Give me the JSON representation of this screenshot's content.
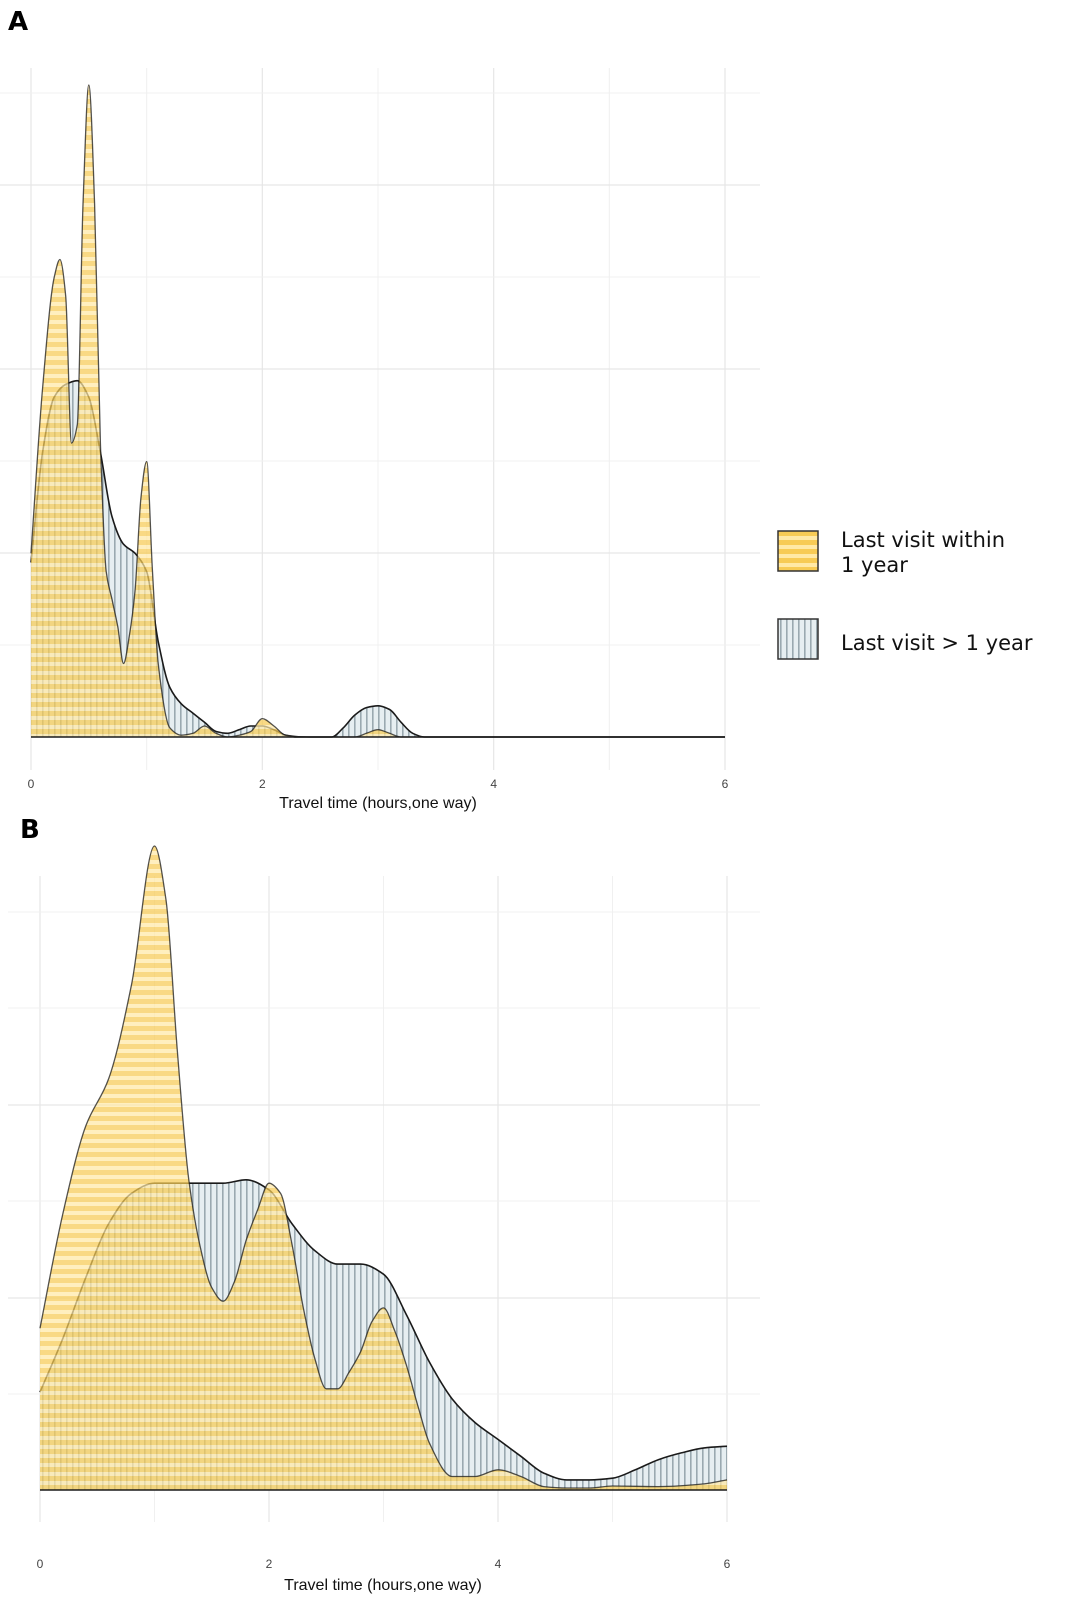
{
  "chart_data": [
    {
      "type": "area",
      "panel_label": "A",
      "xlabel": "Travel time (hours,one way)",
      "ylabel": "",
      "xlim": [
        0,
        6
      ],
      "x_ticks": [
        "0",
        "2",
        "4",
        "6"
      ],
      "grid": true,
      "legend_position": "right",
      "series": [
        {
          "name": "Last visit > 1 year",
          "color": "#d5e3e8",
          "pattern": "vertical-stripes",
          "x": [
            0,
            0.1,
            0.2,
            0.3,
            0.4,
            0.5,
            0.6,
            0.7,
            0.8,
            0.9,
            1.0,
            1.1,
            1.2,
            1.3,
            1.4,
            1.5,
            1.6,
            1.7,
            1.8,
            1.9,
            2.0,
            2.1,
            2.2,
            2.3,
            2.4,
            2.5,
            2.6,
            2.7,
            2.8,
            2.9,
            3.0,
            3.1,
            3.2,
            3.3,
            3.4,
            3.5,
            4.0,
            5.0,
            6.0
          ],
          "y": [
            0.95,
            1.55,
            1.85,
            1.92,
            1.94,
            1.85,
            1.55,
            1.2,
            1.05,
            1.0,
            0.9,
            0.52,
            0.27,
            0.18,
            0.13,
            0.08,
            0.03,
            0.02,
            0.04,
            0.06,
            0.06,
            0.04,
            0.01,
            0,
            0,
            0,
            0,
            0.05,
            0.12,
            0.16,
            0.17,
            0.15,
            0.08,
            0.02,
            0,
            0,
            0,
            0,
            0
          ]
        },
        {
          "name": "Last visit within 1 year",
          "color": "#f5c241",
          "pattern": "horizontal-stripes",
          "x": [
            0,
            0.1,
            0.2,
            0.25,
            0.3,
            0.35,
            0.4,
            0.45,
            0.5,
            0.55,
            0.6,
            0.65,
            0.7,
            0.75,
            0.8,
            0.85,
            0.9,
            0.95,
            1.0,
            1.05,
            1.1,
            1.2,
            1.3,
            1.4,
            1.5,
            1.6,
            1.7,
            1.8,
            1.9,
            2.0,
            2.1,
            2.2,
            2.4,
            2.8,
            2.9,
            3.0,
            3.1,
            3.2,
            3.5,
            4.0,
            5.0,
            6.0
          ],
          "y": [
            1.0,
            1.9,
            2.5,
            2.6,
            2.4,
            1.6,
            1.7,
            2.9,
            3.55,
            2.9,
            1.6,
            0.9,
            0.75,
            0.6,
            0.4,
            0.55,
            0.8,
            1.3,
            1.5,
            0.9,
            0.4,
            0.05,
            0.01,
            0.02,
            0.06,
            0.02,
            0,
            0.01,
            0.03,
            0.1,
            0.06,
            0.01,
            0,
            0,
            0.02,
            0.04,
            0.02,
            0,
            0,
            0,
            0,
            0
          ]
        }
      ]
    },
    {
      "type": "area",
      "panel_label": "B",
      "xlabel": "Travel time (hours,one way)",
      "ylabel": "",
      "xlim": [
        0,
        6
      ],
      "x_ticks": [
        "0",
        "2",
        "4",
        "6"
      ],
      "grid": true,
      "legend_position": "none",
      "series": [
        {
          "name": "Last visit > 1 year",
          "color": "#d5e3e8",
          "pattern": "vertical-stripes",
          "x": [
            0,
            0.2,
            0.4,
            0.6,
            0.8,
            1.0,
            1.2,
            1.4,
            1.6,
            1.8,
            2.0,
            2.2,
            2.4,
            2.6,
            2.8,
            3.0,
            3.2,
            3.4,
            3.6,
            3.8,
            4.0,
            4.2,
            4.4,
            4.6,
            4.8,
            5.0,
            5.2,
            5.4,
            5.6,
            5.8,
            6.0
          ],
          "y": [
            0.29,
            0.45,
            0.63,
            0.79,
            0.88,
            0.91,
            0.91,
            0.91,
            0.91,
            0.92,
            0.89,
            0.79,
            0.71,
            0.67,
            0.67,
            0.64,
            0.52,
            0.38,
            0.27,
            0.2,
            0.15,
            0.1,
            0.05,
            0.03,
            0.03,
            0.035,
            0.06,
            0.09,
            0.11,
            0.125,
            0.13
          ]
        },
        {
          "name": "Last visit within 1 year",
          "color": "#f5c241",
          "pattern": "horizontal-stripes",
          "x": [
            0,
            0.2,
            0.4,
            0.6,
            0.8,
            1.0,
            1.1,
            1.2,
            1.3,
            1.4,
            1.5,
            1.6,
            1.7,
            1.8,
            1.9,
            2.0,
            2.1,
            2.2,
            2.3,
            2.4,
            2.5,
            2.6,
            2.7,
            2.8,
            2.9,
            3.0,
            3.1,
            3.2,
            3.3,
            3.4,
            3.6,
            3.8,
            4.0,
            4.2,
            4.4,
            4.6,
            4.8,
            5.0,
            5.4,
            5.8,
            6.0
          ],
          "y": [
            0.48,
            0.82,
            1.08,
            1.22,
            1.5,
            1.91,
            1.75,
            1.3,
            0.92,
            0.72,
            0.6,
            0.56,
            0.62,
            0.74,
            0.83,
            0.91,
            0.88,
            0.73,
            0.54,
            0.39,
            0.3,
            0.3,
            0.35,
            0.41,
            0.5,
            0.54,
            0.47,
            0.37,
            0.25,
            0.14,
            0.04,
            0.04,
            0.06,
            0.04,
            0.01,
            0.006,
            0.006,
            0.012,
            0.01,
            0.018,
            0.03
          ]
        }
      ]
    }
  ],
  "legend": {
    "items": [
      {
        "key": "within",
        "label_lines": [
          "Last visit within",
          "1 year"
        ],
        "color": "#f5c241",
        "pattern": "horizontal-stripes"
      },
      {
        "key": "over",
        "label_lines": [
          "Last visit > 1 year"
        ],
        "color": "#d5e3e8",
        "pattern": "vertical-stripes"
      }
    ]
  }
}
